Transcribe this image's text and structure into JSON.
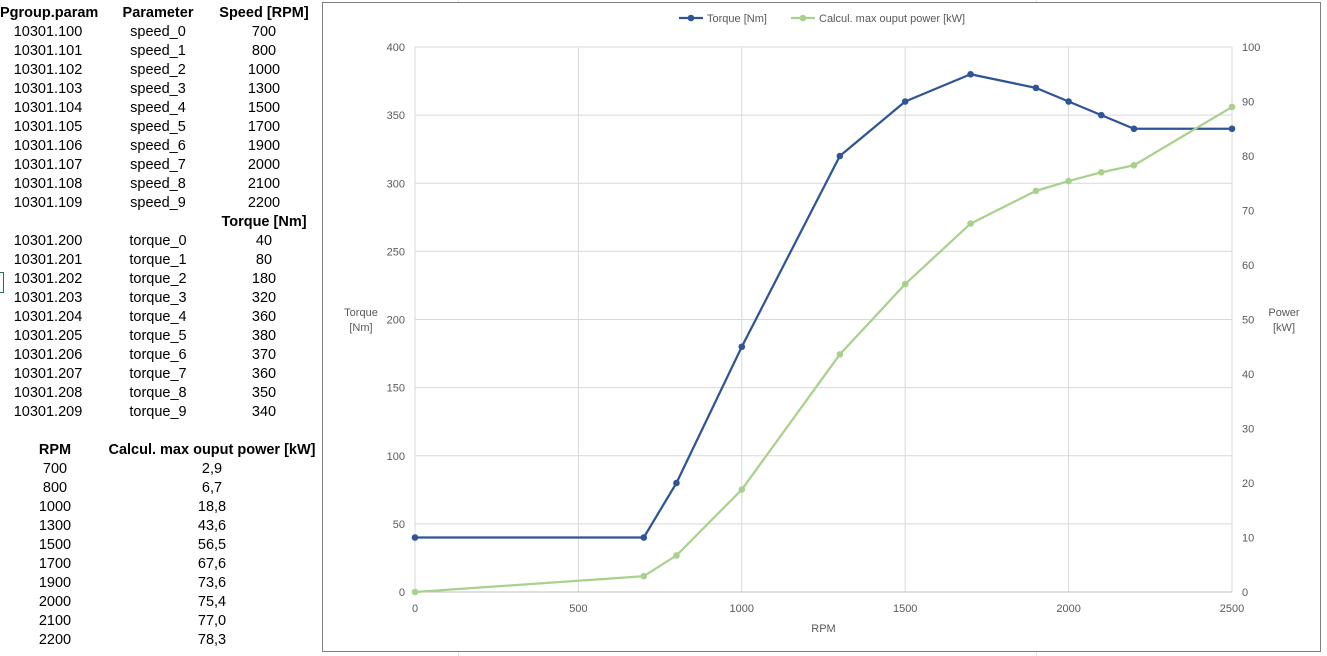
{
  "table": {
    "headers": {
      "pgroup": "Pgroup.param",
      "parameter": "Parameter",
      "speed": "Speed [RPM]",
      "torque": "Torque [Nm]"
    },
    "speed_rows": [
      {
        "id": "10301.100",
        "param": "speed_0",
        "value": "700"
      },
      {
        "id": "10301.101",
        "param": "speed_1",
        "value": "800"
      },
      {
        "id": "10301.102",
        "param": "speed_2",
        "value": "1000"
      },
      {
        "id": "10301.103",
        "param": "speed_3",
        "value": "1300"
      },
      {
        "id": "10301.104",
        "param": "speed_4",
        "value": "1500"
      },
      {
        "id": "10301.105",
        "param": "speed_5",
        "value": "1700"
      },
      {
        "id": "10301.106",
        "param": "speed_6",
        "value": "1900"
      },
      {
        "id": "10301.107",
        "param": "speed_7",
        "value": "2000"
      },
      {
        "id": "10301.108",
        "param": "speed_8",
        "value": "2100"
      },
      {
        "id": "10301.109",
        "param": "speed_9",
        "value": "2200"
      }
    ],
    "torque_rows": [
      {
        "id": "10301.200",
        "param": "torque_0",
        "value": "40"
      },
      {
        "id": "10301.201",
        "param": "torque_1",
        "value": "80"
      },
      {
        "id": "10301.202",
        "param": "torque_2",
        "value": "180"
      },
      {
        "id": "10301.203",
        "param": "torque_3",
        "value": "320"
      },
      {
        "id": "10301.204",
        "param": "torque_4",
        "value": "360"
      },
      {
        "id": "10301.205",
        "param": "torque_5",
        "value": "380"
      },
      {
        "id": "10301.206",
        "param": "torque_6",
        "value": "370"
      },
      {
        "id": "10301.207",
        "param": "torque_7",
        "value": "360"
      },
      {
        "id": "10301.208",
        "param": "torque_8",
        "value": "350"
      },
      {
        "id": "10301.209",
        "param": "torque_9",
        "value": "340"
      }
    ]
  },
  "power_table": {
    "headers": {
      "rpm": "RPM",
      "power": "Calcul. max ouput power [kW]"
    },
    "rows": [
      {
        "rpm": "700",
        "power": "2,9"
      },
      {
        "rpm": "800",
        "power": "6,7"
      },
      {
        "rpm": "1000",
        "power": "18,8"
      },
      {
        "rpm": "1300",
        "power": "43,6"
      },
      {
        "rpm": "1500",
        "power": "56,5"
      },
      {
        "rpm": "1700",
        "power": "67,6"
      },
      {
        "rpm": "1900",
        "power": "73,6"
      },
      {
        "rpm": "2000",
        "power": "75,4"
      },
      {
        "rpm": "2100",
        "power": "77,0"
      },
      {
        "rpm": "2200",
        "power": "78,3"
      }
    ]
  },
  "chart_data": {
    "type": "scatter",
    "xlabel": "RPM",
    "ylabel_lines": [
      "Torque",
      "[Nm]"
    ],
    "y2label_lines": [
      "Power",
      "[kW]"
    ],
    "xlim": [
      0,
      2500
    ],
    "xticks": [
      0,
      500,
      1000,
      1500,
      2000,
      2500
    ],
    "ylim": [
      0,
      400
    ],
    "yticks": [
      0,
      50,
      100,
      150,
      200,
      250,
      300,
      350,
      400
    ],
    "y2lim": [
      0,
      100
    ],
    "y2ticks": [
      0,
      10,
      20,
      30,
      40,
      50,
      60,
      70,
      80,
      90,
      100
    ],
    "grid": true,
    "legend_position": "top-center",
    "series": [
      {
        "name": "Torque [Nm]",
        "axis": "left",
        "color": "#2f5597",
        "x": [
          0,
          700,
          800,
          1000,
          1300,
          1500,
          1700,
          1900,
          2000,
          2100,
          2200,
          2500
        ],
        "y": [
          40,
          40,
          80,
          180,
          320,
          360,
          380,
          370,
          360,
          350,
          340,
          340
        ]
      },
      {
        "name": "Calcul. max ouput power [kW]",
        "axis": "right",
        "color": "#a9d18e",
        "x": [
          0,
          700,
          800,
          1000,
          1300,
          1500,
          1700,
          1900,
          2000,
          2100,
          2200,
          2500
        ],
        "y": [
          0,
          2.9,
          6.7,
          18.8,
          43.6,
          56.5,
          67.6,
          73.6,
          75.4,
          77.0,
          78.3,
          89.0
        ]
      }
    ]
  }
}
